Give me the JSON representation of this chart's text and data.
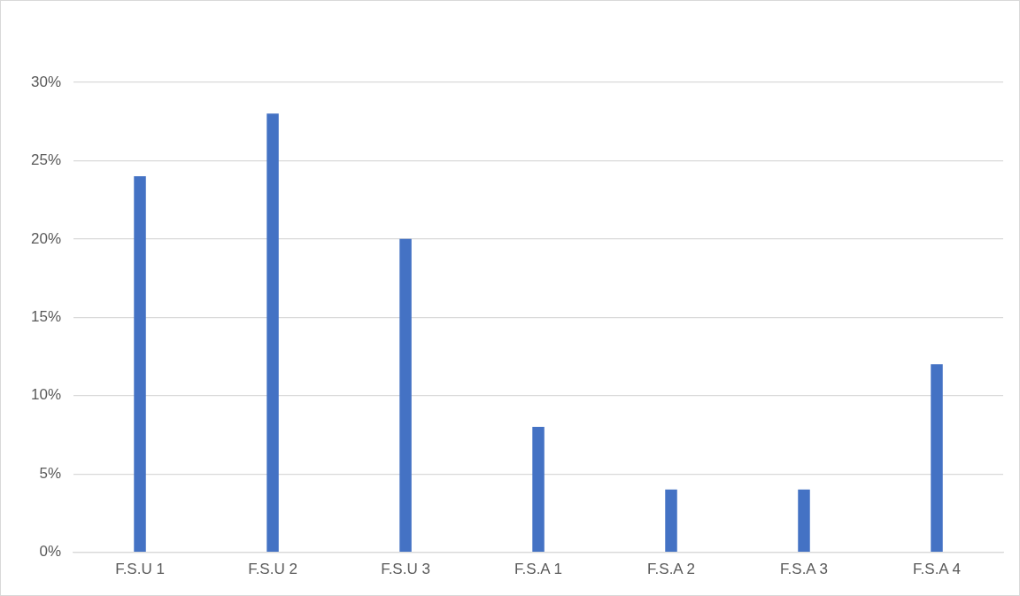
{
  "chart_data": {
    "type": "bar",
    "categories": [
      "F.S.U 1",
      "F.S.U 2",
      "F.S.U 3",
      "F.S.A 1",
      "F.S.A 2",
      "F.S.A 3",
      "F.S.A 4"
    ],
    "values": [
      24,
      28,
      20,
      8,
      4,
      4,
      12
    ],
    "color": "#4472c4",
    "ylim": [
      0,
      30
    ],
    "yticks": [
      {
        "value": 0,
        "label": "0%"
      },
      {
        "value": 5,
        "label": "5%"
      },
      {
        "value": 10,
        "label": "10%"
      },
      {
        "value": 15,
        "label": "15%"
      },
      {
        "value": 20,
        "label": "20%"
      },
      {
        "value": 25,
        "label": "25%"
      },
      {
        "value": 30,
        "label": "30%"
      }
    ],
    "grid": "y",
    "legend": false
  }
}
